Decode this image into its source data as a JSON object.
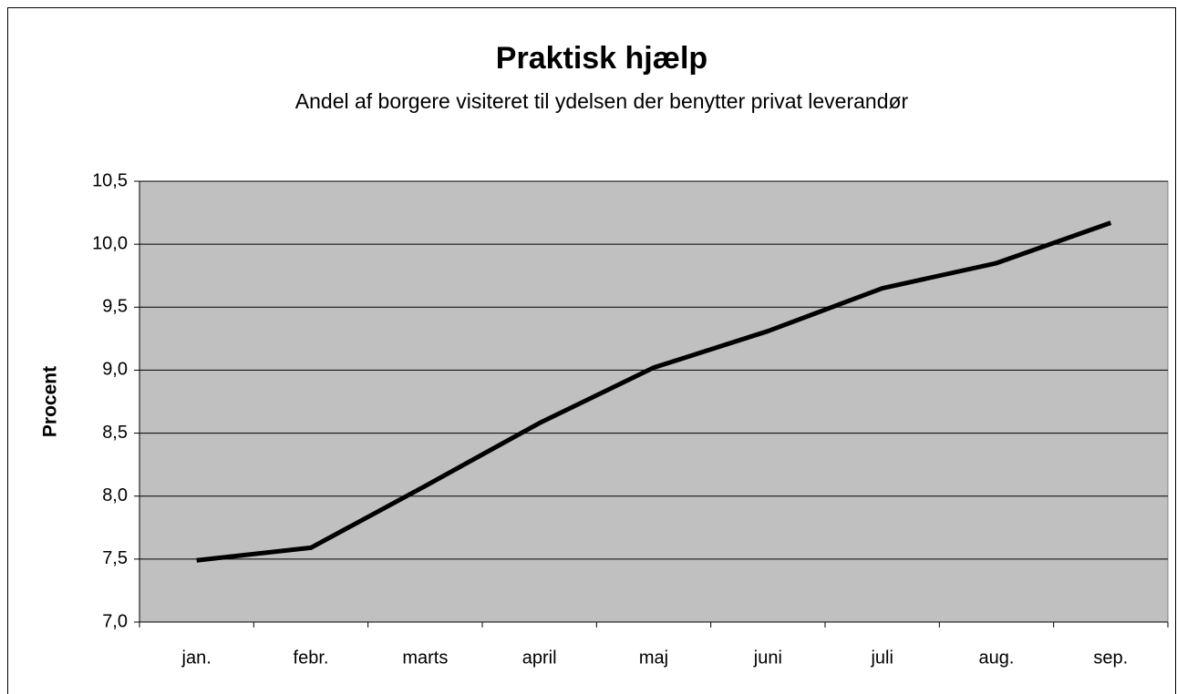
{
  "chart_data": {
    "type": "line",
    "title": "Praktisk hjælp",
    "subtitle": "Andel af borgere visiteret til ydelsen der benytter privat leverandør",
    "y_label": "Procent",
    "categories": [
      "jan.",
      "febr.",
      "marts",
      "april",
      "maj",
      "juni",
      "juli",
      "aug.",
      "sep."
    ],
    "series": [
      {
        "name": "Procent",
        "color": "#000000",
        "values": [
          7.49,
          7.59,
          8.08,
          8.58,
          9.02,
          9.31,
          9.65,
          9.85,
          10.17
        ]
      }
    ],
    "ylim": [
      7.0,
      10.5
    ],
    "yticks": [
      {
        "value": 7.0,
        "label": "7,0"
      },
      {
        "value": 7.5,
        "label": "7,5"
      },
      {
        "value": 8.0,
        "label": "8,0"
      },
      {
        "value": 8.5,
        "label": "8,5"
      },
      {
        "value": 9.0,
        "label": "9,0"
      },
      {
        "value": 9.5,
        "label": "9,5"
      },
      {
        "value": 10.0,
        "label": "10,0"
      },
      {
        "value": 10.5,
        "label": "10,5"
      }
    ],
    "grid": true,
    "plot_background": "#c0c0c0"
  }
}
